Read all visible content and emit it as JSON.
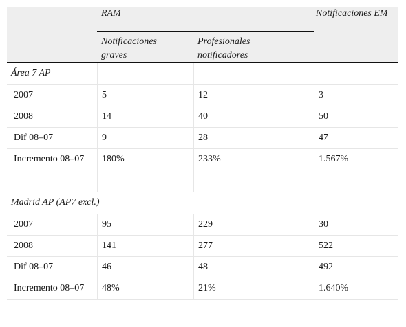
{
  "table": {
    "header": {
      "ram": "RAM",
      "notificaciones_em": "Notificaciones EM",
      "notificaciones_graves": "Notificaciones graves",
      "profesionales_notificadores": "Profesionales notificadores"
    },
    "sections": [
      {
        "title": "Área 7 AP",
        "rows": [
          {
            "label": "2007",
            "graves": "5",
            "profesionales": "12",
            "em": "3"
          },
          {
            "label": "2008",
            "graves": "14",
            "profesionales": "40",
            "em": "50"
          },
          {
            "label": "Dif 08–07",
            "graves": "9",
            "profesionales": "28",
            "em": "47"
          },
          {
            "label": "Incremento 08–07",
            "graves": "180%",
            "profesionales": "233%",
            "em": "1.567%"
          }
        ]
      },
      {
        "title": "Madrid AP (AP7 excl.)",
        "rows": [
          {
            "label": "2007",
            "graves": "95",
            "profesionales": "229",
            "em": "30"
          },
          {
            "label": "2008",
            "graves": "141",
            "profesionales": "277",
            "em": "522"
          },
          {
            "label": "Dif 08–07",
            "graves": "46",
            "profesionales": "48",
            "em": "492"
          },
          {
            "label": "Incremento 08–07",
            "graves": "48%",
            "profesionales": "21%",
            "em": "1.640%"
          }
        ]
      }
    ]
  }
}
